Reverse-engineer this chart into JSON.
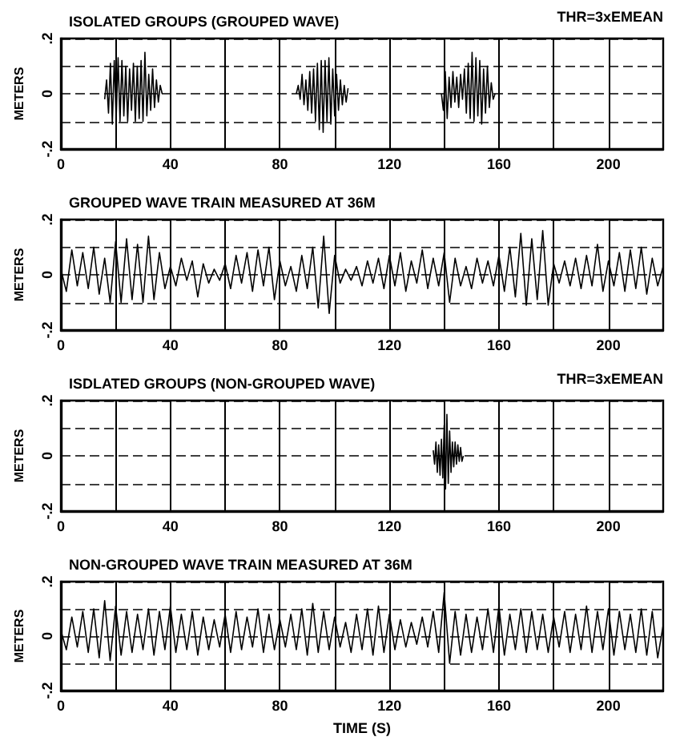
{
  "chart_data": [
    {
      "type": "line",
      "title": "ISOLATED GROUPS (GROUPED WAVE)",
      "ylabel": "METERS",
      "annotations": [
        "THR=3xEMEAN"
      ],
      "xlim": [
        0,
        220
      ],
      "xticks": [
        0,
        {
          "value": 20,
          "label": null
        },
        40,
        {
          "value": 60,
          "label": null
        },
        80,
        {
          "value": 100,
          "label": null
        },
        120,
        {
          "value": 140,
          "label": null
        },
        160,
        {
          "value": 180,
          "label": null
        },
        200
      ],
      "ylim": [
        -0.2,
        0.2
      ],
      "yticks": [
        {
          "value": -0.2,
          "label": "-.2"
        },
        {
          "value": -0.1,
          "label": null
        },
        {
          "value": 0,
          "label": "0"
        },
        {
          "value": 0.1,
          "label": null
        },
        {
          "value": 0.2,
          "label": ".2"
        }
      ],
      "grid": true,
      "series": [
        {
          "color": "#000000",
          "x": [
            16,
            16.7,
            17.4,
            18.1,
            18.8,
            19.5,
            20.2,
            20.9,
            21.6,
            22.3,
            23,
            23.7,
            24.4,
            25.1,
            25.8,
            26.5,
            27.2,
            27.9,
            28.6,
            29.3,
            30,
            30.7,
            31.4,
            32.1,
            32.8,
            33.5,
            34.2,
            34.9,
            35.6,
            36.3,
            37,
            61,
            86,
            86.7,
            87.4,
            88.1,
            88.8,
            89.5,
            90.2,
            90.9,
            91.6,
            92.3,
            93,
            93.7,
            94.4,
            95.1,
            95.8,
            96.5,
            97.2,
            97.9,
            98.6,
            99.3,
            100,
            100.7,
            101.4,
            102.1,
            102.8,
            103.5,
            104.2,
            104.9,
            122,
            139,
            139.7,
            140.4,
            141.1,
            141.8,
            142.5,
            143.2,
            143.9,
            144.6,
            145.3,
            146,
            146.7,
            147.4,
            148.1,
            148.8,
            149.5,
            150.2,
            150.9,
            151.6,
            152.3,
            153,
            153.7,
            154.4,
            155.1,
            155.8,
            156.5,
            157.2,
            157.9,
            158.6
          ],
          "values": [
            -0.02,
            0.05,
            -0.07,
            0.11,
            -0.11,
            0.12,
            -0.09,
            0.13,
            -0.1,
            0.12,
            -0.08,
            0.1,
            -0.1,
            0.09,
            -0.06,
            0.11,
            -0.1,
            0.1,
            -0.09,
            0.12,
            -0.1,
            0.15,
            -0.08,
            0.07,
            -0.06,
            0.09,
            -0.05,
            0.05,
            -0.03,
            0.03,
            0,
            null,
            0,
            0.03,
            -0.02,
            0.07,
            -0.04,
            0.05,
            -0.06,
            0.08,
            -0.07,
            0.09,
            -0.1,
            0.11,
            -0.13,
            0.12,
            -0.14,
            0.12,
            -0.1,
            0.13,
            -0.11,
            0.09,
            -0.08,
            0.07,
            -0.06,
            0.05,
            -0.04,
            0.03,
            -0.03,
            0.02,
            null,
            0,
            -0.06,
            0.08,
            -0.09,
            0.06,
            -0.05,
            0.08,
            -0.03,
            0.06,
            -0.05,
            0.07,
            -0.02,
            0.09,
            -0.07,
            0.11,
            -0.09,
            0.15,
            -0.1,
            0.13,
            -0.08,
            0.12,
            -0.11,
            0.09,
            -0.07,
            0.1,
            -0.05,
            0.04,
            -0.02,
            0
          ]
        }
      ]
    },
    {
      "type": "line",
      "title": "GROUPED WAVE TRAIN MEASURED AT 36M",
      "ylabel": "METERS",
      "xlim": [
        0,
        220
      ],
      "xticks": [
        0,
        {
          "value": 20,
          "label": null
        },
        40,
        {
          "value": 60,
          "label": null
        },
        80,
        {
          "value": 100,
          "label": null
        },
        120,
        {
          "value": 140,
          "label": null
        },
        160,
        {
          "value": 180,
          "label": null
        },
        200
      ],
      "ylim": [
        -0.2,
        0.2
      ],
      "yticks": [
        {
          "value": -0.2,
          "label": "-.2"
        },
        {
          "value": -0.1,
          "label": null
        },
        {
          "value": 0,
          "label": "0"
        },
        {
          "value": 0.1,
          "label": null
        },
        {
          "value": 0.2,
          "label": ".2"
        }
      ],
      "grid": true,
      "series": [
        {
          "color": "#000000",
          "x": [
            0,
            2,
            4,
            6,
            8,
            10,
            12,
            14,
            16,
            18,
            20,
            22,
            24,
            26,
            28,
            30,
            32,
            34,
            36,
            38,
            40,
            42,
            44,
            46,
            48,
            50,
            52,
            54,
            56,
            58,
            60,
            62,
            64,
            66,
            68,
            70,
            72,
            74,
            76,
            78,
            80,
            82,
            84,
            86,
            88,
            90,
            92,
            94,
            96,
            98,
            100,
            102,
            104,
            106,
            108,
            110,
            112,
            114,
            116,
            118,
            120,
            122,
            124,
            126,
            128,
            130,
            132,
            134,
            136,
            138,
            140,
            142,
            144,
            146,
            148,
            150,
            152,
            154,
            156,
            158,
            160,
            162,
            164,
            166,
            168,
            170,
            172,
            174,
            176,
            178,
            180,
            182,
            184,
            186,
            188,
            190,
            192,
            194,
            196,
            198,
            200,
            202,
            204,
            206,
            208,
            210,
            212,
            214,
            216,
            218,
            220
          ],
          "values": [
            0.02,
            -0.06,
            0.09,
            -0.04,
            0.08,
            -0.05,
            0.1,
            -0.07,
            0.06,
            -0.1,
            0.12,
            -0.1,
            0.13,
            -0.09,
            0.11,
            -0.1,
            0.14,
            -0.09,
            0.08,
            -0.05,
            0.03,
            -0.04,
            0.06,
            -0.02,
            0.05,
            -0.08,
            0.04,
            -0.03,
            0.02,
            -0.02,
            0.04,
            -0.05,
            0.07,
            -0.03,
            0.08,
            -0.06,
            0.09,
            -0.04,
            0.1,
            -0.09,
            0.05,
            -0.04,
            0.03,
            -0.06,
            0.07,
            -0.05,
            0.1,
            -0.12,
            0.14,
            -0.14,
            0.07,
            -0.03,
            0.02,
            -0.02,
            0.03,
            -0.04,
            0.05,
            -0.03,
            0.06,
            -0.05,
            0.07,
            -0.04,
            0.08,
            -0.06,
            0.05,
            -0.03,
            0.09,
            -0.05,
            0.06,
            -0.04,
            0.08,
            -0.1,
            0.06,
            -0.04,
            0.03,
            -0.05,
            0.06,
            -0.03,
            0.05,
            -0.04,
            0.07,
            -0.06,
            0.1,
            -0.08,
            0.15,
            -0.11,
            0.13,
            -0.09,
            0.16,
            -0.11,
            0.04,
            -0.03,
            0.05,
            -0.04,
            0.06,
            -0.05,
            0.07,
            -0.04,
            0.11,
            -0.06,
            0.05,
            -0.04,
            0.08,
            -0.06,
            0.09,
            -0.05,
            0.1,
            -0.07,
            0.06,
            -0.04,
            0.03
          ]
        }
      ]
    },
    {
      "type": "line",
      "title": "ISDLATED GROUPS (NON-GROUPED WAVE)",
      "ylabel": "METERS",
      "annotations": [
        "THR=3xEMEAN"
      ],
      "xlim": [
        0,
        220
      ],
      "xticks": [
        0,
        {
          "value": 20,
          "label": null
        },
        40,
        {
          "value": 60,
          "label": null
        },
        80,
        {
          "value": 100,
          "label": null
        },
        120,
        {
          "value": 140,
          "label": null
        },
        160,
        {
          "value": 180,
          "label": null
        },
        200
      ],
      "ylim": [
        -0.2,
        0.2
      ],
      "yticks": [
        {
          "value": -0.2,
          "label": "-.2"
        },
        {
          "value": -0.1,
          "label": null
        },
        {
          "value": 0,
          "label": "0"
        },
        {
          "value": 0.1,
          "label": null
        },
        {
          "value": 0.2,
          "label": ".2"
        }
      ],
      "grid": true,
      "series": [
        {
          "color": "#000000",
          "x": [
            136,
            136.5,
            137,
            137.5,
            138,
            138.5,
            139,
            139.5,
            140,
            140.5,
            141,
            141.5,
            142,
            142.5,
            143,
            143.5,
            144,
            144.5,
            145,
            145.5,
            146,
            146.5,
            147
          ],
          "values": [
            0.02,
            -0.03,
            0.05,
            -0.06,
            0.04,
            -0.07,
            0.06,
            -0.08,
            0.11,
            -0.12,
            0.15,
            -0.1,
            0.09,
            -0.06,
            0.05,
            -0.04,
            0.05,
            -0.03,
            0.04,
            -0.02,
            0.03,
            -0.02,
            0
          ]
        }
      ]
    },
    {
      "type": "line",
      "title": "NON-GROUPED WAVE TRAIN MEASURED AT 36M",
      "xlabel": "TIME (S)",
      "ylabel": "METERS",
      "xlim": [
        0,
        220
      ],
      "xticks": [
        0,
        {
          "value": 20,
          "label": null
        },
        40,
        {
          "value": 60,
          "label": null
        },
        80,
        {
          "value": 100,
          "label": null
        },
        120,
        {
          "value": 140,
          "label": null
        },
        160,
        {
          "value": 180,
          "label": null
        },
        200
      ],
      "ylim": [
        -0.2,
        0.2
      ],
      "yticks": [
        {
          "value": -0.2,
          "label": "-.2"
        },
        {
          "value": -0.1,
          "label": null
        },
        {
          "value": 0,
          "label": "0"
        },
        {
          "value": 0.1,
          "label": null
        },
        {
          "value": 0.2,
          "label": ".2"
        }
      ],
      "grid": true,
      "series": [
        {
          "color": "#000000",
          "x": [
            0,
            2,
            4,
            6,
            8,
            10,
            12,
            14,
            16,
            18,
            20,
            22,
            24,
            26,
            28,
            30,
            32,
            34,
            36,
            38,
            40,
            42,
            44,
            46,
            48,
            50,
            52,
            54,
            56,
            58,
            60,
            62,
            64,
            66,
            68,
            70,
            72,
            74,
            76,
            78,
            80,
            82,
            84,
            86,
            88,
            90,
            92,
            94,
            96,
            98,
            100,
            102,
            104,
            106,
            108,
            110,
            112,
            114,
            116,
            118,
            120,
            122,
            124,
            126,
            128,
            130,
            132,
            134,
            136,
            138,
            140,
            142,
            144,
            146,
            148,
            150,
            152,
            154,
            156,
            158,
            160,
            162,
            164,
            166,
            168,
            170,
            172,
            174,
            176,
            178,
            180,
            182,
            184,
            186,
            188,
            190,
            192,
            194,
            196,
            198,
            200,
            202,
            204,
            206,
            208,
            210,
            212,
            214,
            216,
            218,
            220
          ],
          "values": [
            0.02,
            -0.05,
            0.07,
            -0.04,
            0.09,
            -0.06,
            0.1,
            -0.08,
            0.13,
            -0.09,
            0.11,
            -0.07,
            0.09,
            -0.06,
            0.08,
            -0.05,
            0.1,
            -0.07,
            0.09,
            -0.05,
            0.11,
            -0.06,
            0.08,
            -0.05,
            0.09,
            -0.07,
            0.07,
            -0.05,
            0.06,
            -0.04,
            0.08,
            -0.06,
            0.09,
            -0.05,
            0.07,
            -0.04,
            0.1,
            -0.06,
            0.08,
            -0.05,
            0.06,
            -0.04,
            0.08,
            -0.05,
            0.1,
            -0.07,
            0.12,
            -0.06,
            0.09,
            -0.05,
            0.07,
            -0.04,
            0.05,
            -0.06,
            0.08,
            -0.05,
            0.1,
            -0.07,
            0.11,
            -0.06,
            0.08,
            -0.05,
            0.06,
            -0.04,
            0.05,
            -0.03,
            0.07,
            -0.04,
            0.09,
            -0.06,
            0.16,
            -0.1,
            0.09,
            -0.07,
            0.08,
            -0.06,
            0.07,
            -0.05,
            0.1,
            -0.06,
            0.11,
            -0.07,
            0.08,
            -0.05,
            0.1,
            -0.06,
            0.09,
            -0.05,
            0.08,
            -0.06,
            0.07,
            -0.04,
            0.09,
            -0.06,
            0.08,
            -0.05,
            0.11,
            -0.06,
            0.09,
            -0.05,
            0.1,
            -0.07,
            0.09,
            -0.05,
            0.08,
            -0.06,
            0.1,
            -0.07,
            0.09,
            -0.08,
            0.04
          ]
        }
      ]
    }
  ]
}
